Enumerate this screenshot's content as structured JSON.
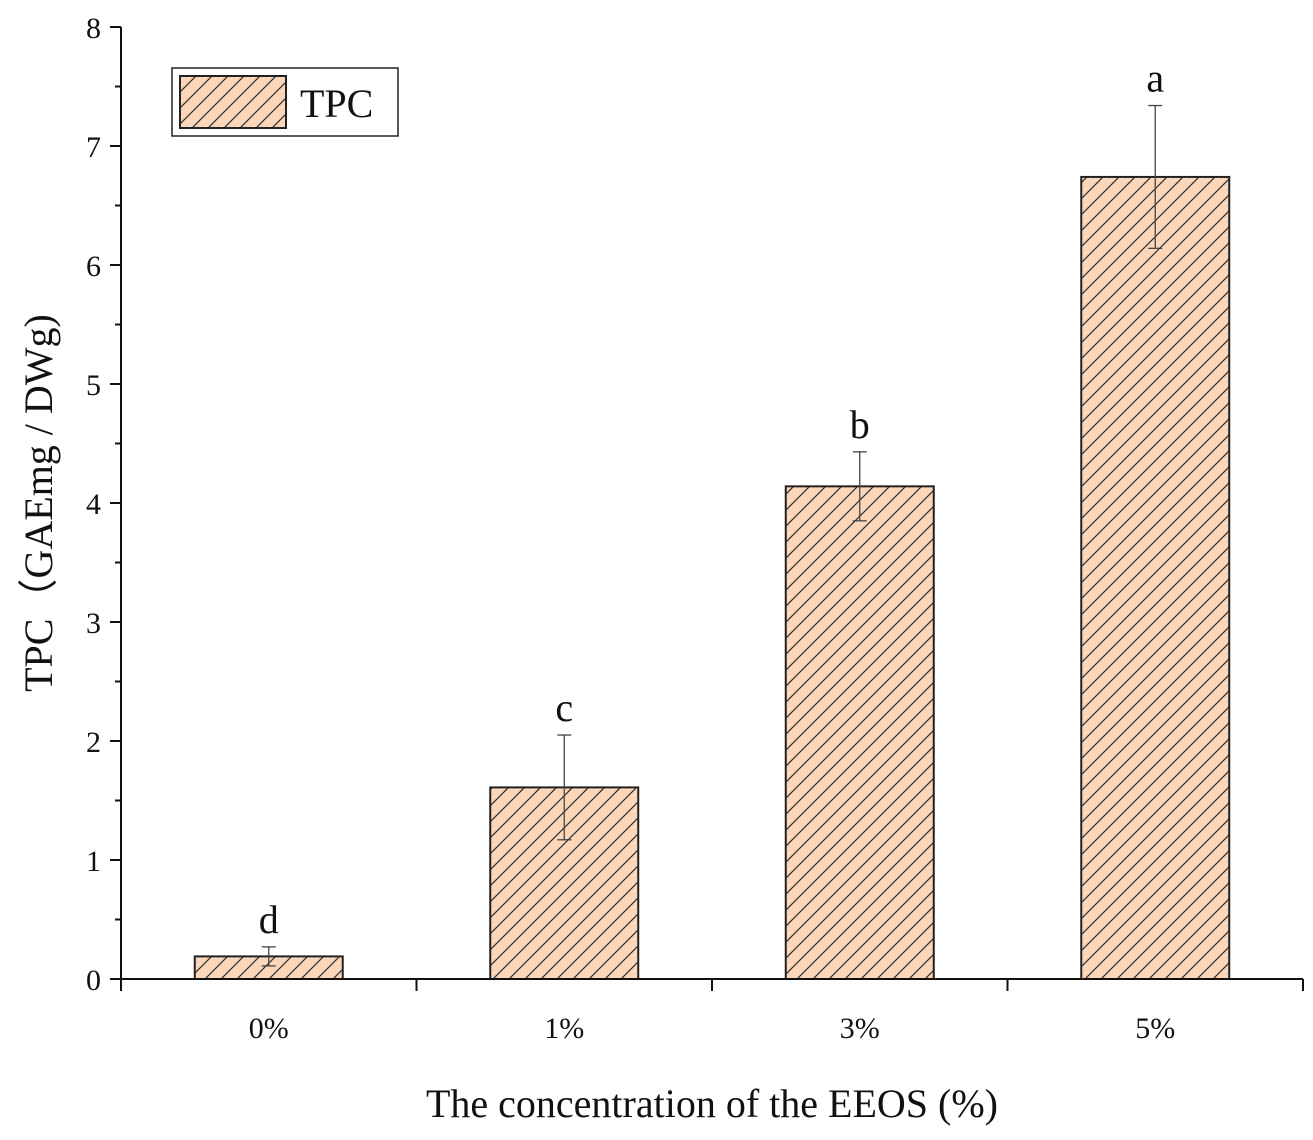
{
  "chart_data": {
    "type": "bar",
    "title": "",
    "xlabel": "The concentration of the EEOS (%)",
    "ylabel": "TPC（GAEmg / DWg)",
    "categories": [
      "0%",
      "1%",
      "3%",
      "5%"
    ],
    "series": [
      {
        "name": "TPC",
        "values": [
          0.19,
          1.61,
          4.14,
          6.74
        ],
        "errors": [
          0.08,
          0.44,
          0.29,
          0.6
        ],
        "significance": [
          "d",
          "c",
          "b",
          "a"
        ]
      }
    ],
    "ylim": [
      0,
      8
    ],
    "yticks": [
      "0",
      "1",
      "2",
      "3",
      "4",
      "5",
      "6",
      "7",
      "8"
    ],
    "grid": false,
    "legend_position": "top-left",
    "bar_fill": "#fcd6b8",
    "bar_hatch": "diagonal",
    "bar_stroke": "#222222"
  }
}
